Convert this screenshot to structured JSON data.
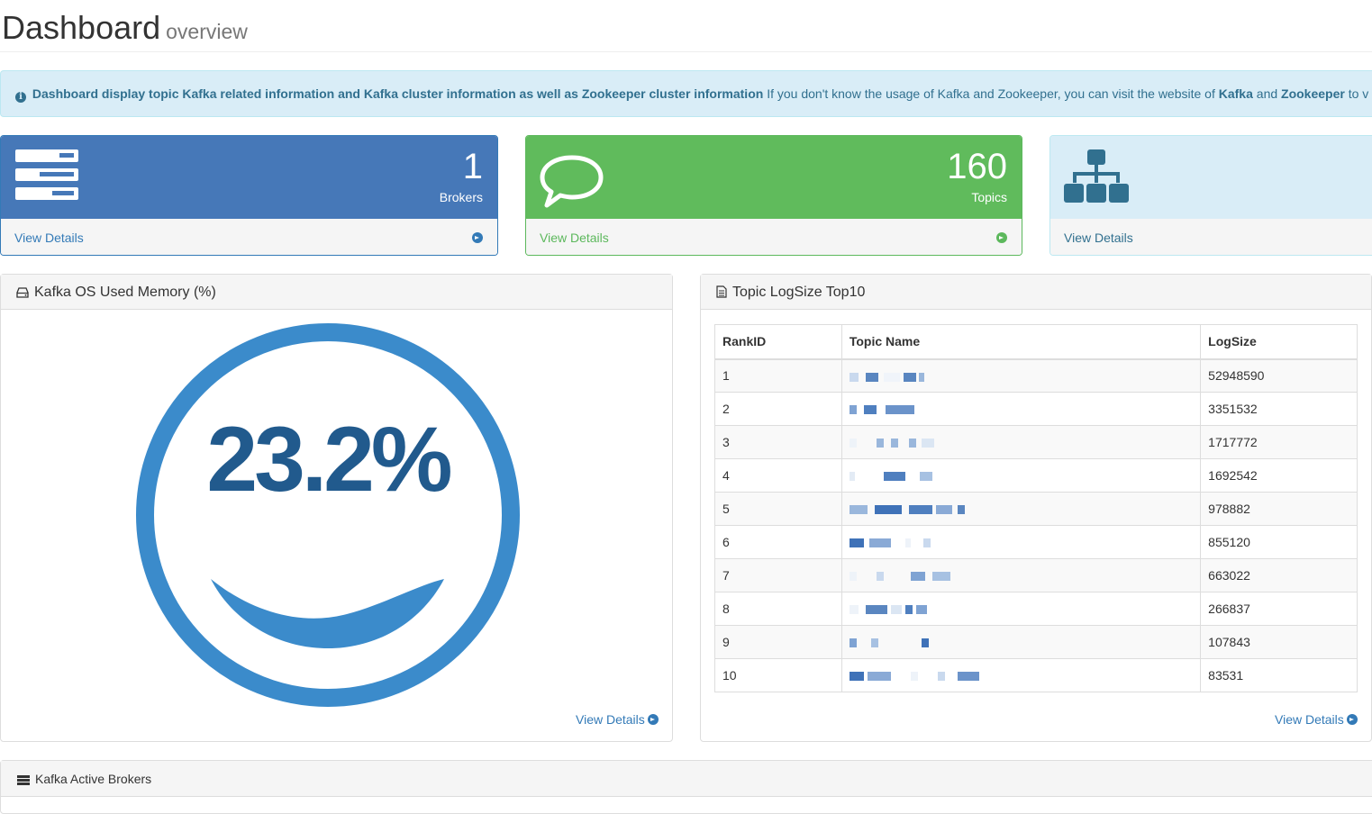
{
  "header": {
    "title": "Dashboard",
    "subtitle": "overview"
  },
  "alert": {
    "bold_text": "Dashboard display topic Kafka related information and Kafka cluster information as well as Zookeeper cluster information",
    "text_1": " If you don't know the usage of Kafka and Zookeeper, you can visit the website of ",
    "kafka_link": "Kafka",
    "text_2": " and ",
    "zookeeper_link": "Zookeeper",
    "text_3": " to v"
  },
  "stats": {
    "brokers": {
      "value": "1",
      "label": "Brokers",
      "link": "View Details",
      "icon": "server-icon",
      "color": "#4678b8"
    },
    "topics": {
      "value": "160",
      "label": "Topics",
      "link": "View Details",
      "icon": "comment-icon",
      "color": "#60bb5c"
    },
    "zookeeper": {
      "link": "View Details",
      "icon": "sitemap-icon",
      "color": "#d9edf7"
    }
  },
  "memory_panel": {
    "title": "Kafka OS Used Memory (%)",
    "value_text": "23.2%",
    "value": 23.2,
    "link": "View Details",
    "color": "#3b8bcb"
  },
  "logsize_panel": {
    "title": "Topic LogSize Top10",
    "link": "View Details",
    "columns": [
      "RankID",
      "Topic Name",
      "LogSize"
    ],
    "rows": [
      {
        "rank": "1",
        "logsize": "52948590"
      },
      {
        "rank": "2",
        "logsize": "3351532"
      },
      {
        "rank": "3",
        "logsize": "1717772"
      },
      {
        "rank": "4",
        "logsize": "1692542"
      },
      {
        "rank": "5",
        "logsize": "978882"
      },
      {
        "rank": "6",
        "logsize": "855120"
      },
      {
        "rank": "7",
        "logsize": "663022"
      },
      {
        "rank": "8",
        "logsize": "266837"
      },
      {
        "rank": "9",
        "logsize": "107843"
      },
      {
        "rank": "10",
        "logsize": "83531"
      }
    ]
  },
  "brokers_panel": {
    "title": "Kafka Active Brokers"
  }
}
